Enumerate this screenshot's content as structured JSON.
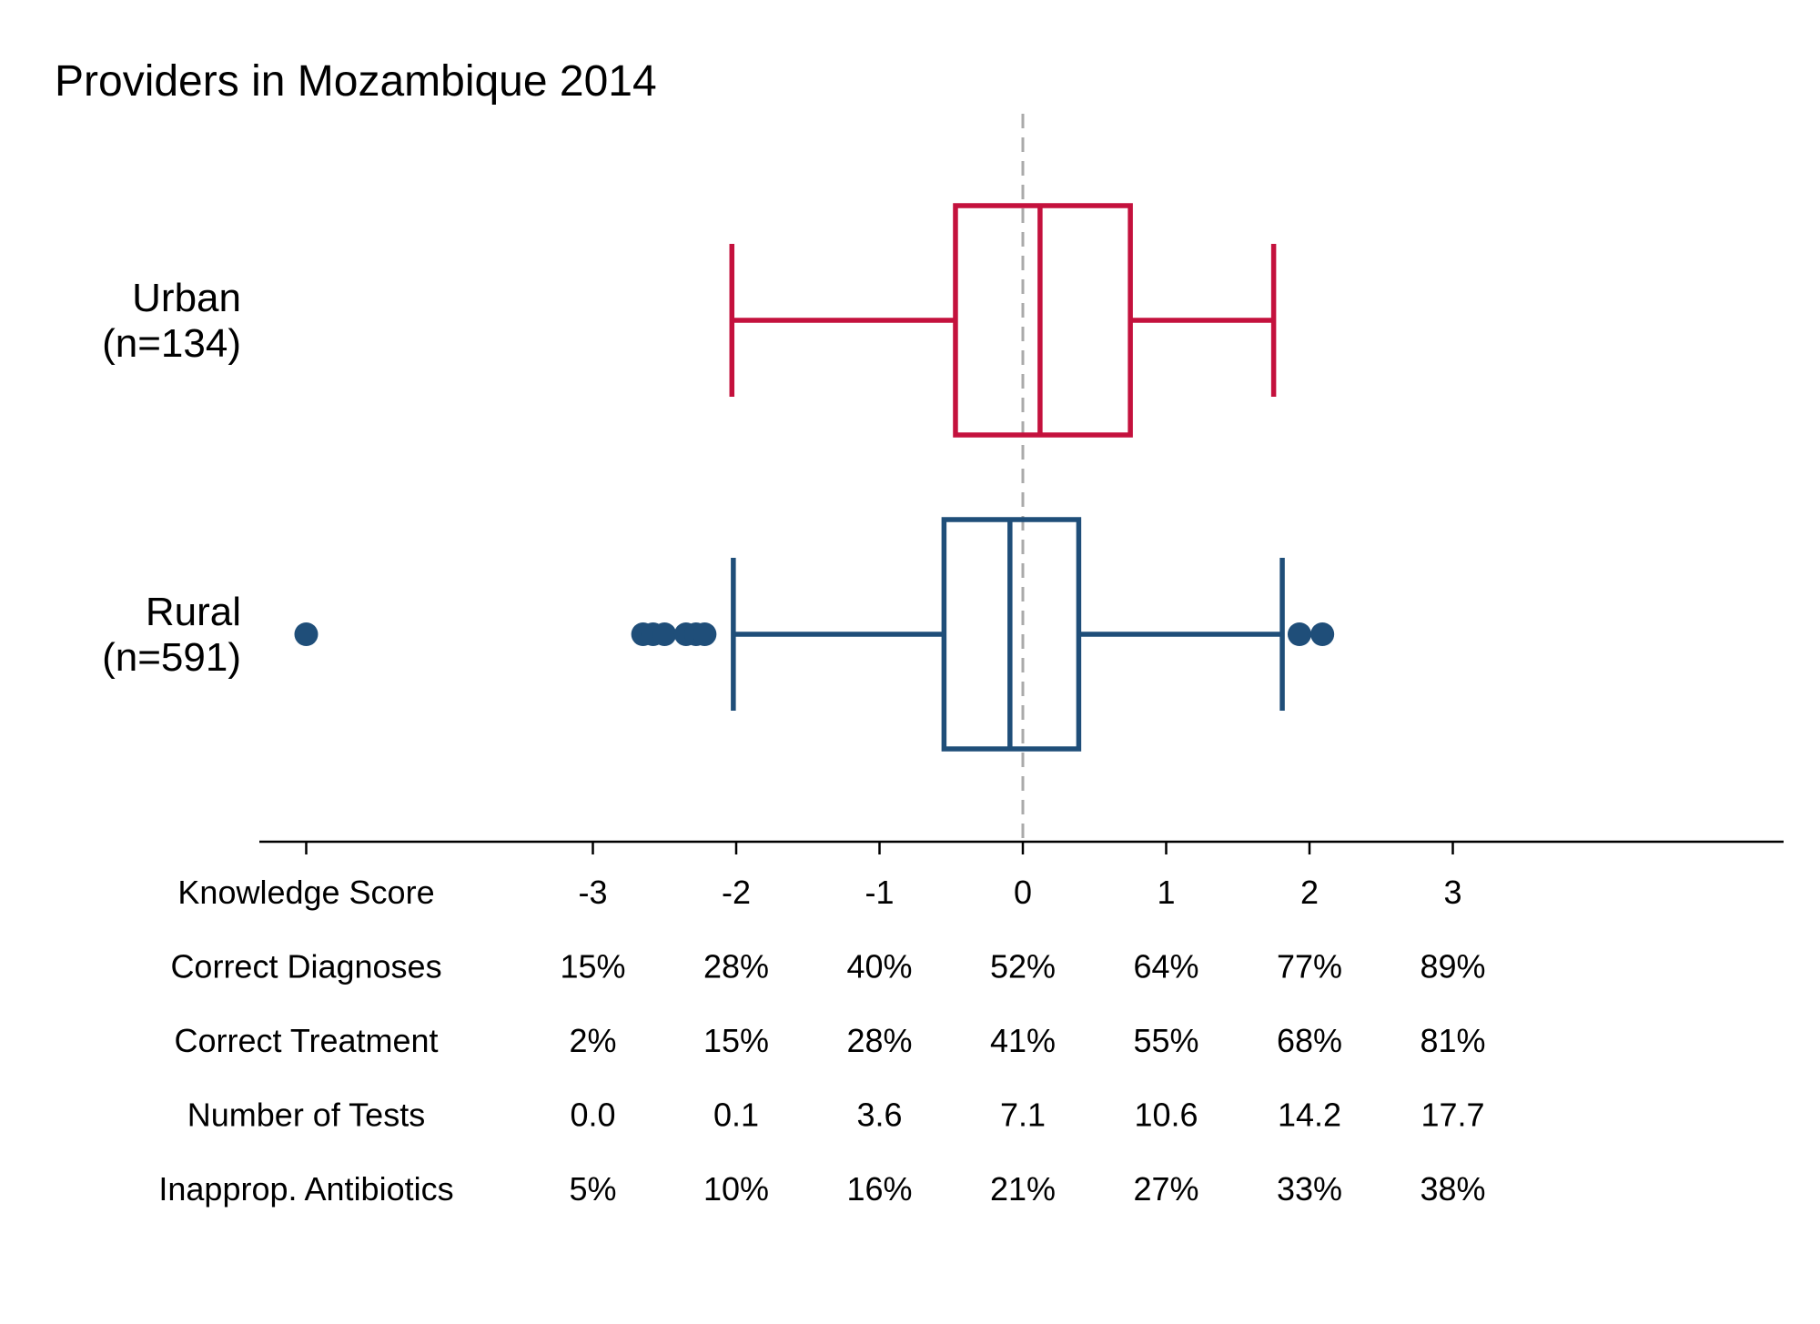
{
  "chart_data": {
    "type": "boxplot",
    "title": "Providers in Mozambique 2014",
    "orientation": "horizontal",
    "xlim": [
      -5,
      5.3
    ],
    "reference_line": {
      "x": 0,
      "style": "dashed",
      "color": "#aaaaaa"
    },
    "groups": [
      {
        "label_line1": "Urban",
        "label_line2": "(n=134)",
        "color": "#c4113d",
        "whisker_low": -2.03,
        "q1": -0.47,
        "median": 0.12,
        "q3": 0.75,
        "whisker_high": 1.75,
        "outliers": []
      },
      {
        "label_line1": "Rural",
        "label_line2": "(n=591)",
        "color": "#1f4e79",
        "whisker_low": -2.02,
        "q1": -0.55,
        "median": -0.09,
        "q3": 0.39,
        "whisker_high": 1.81,
        "outliers": [
          -5.0,
          -2.65,
          -2.58,
          -2.5,
          -2.35,
          -2.28,
          -2.22,
          1.93,
          2.09
        ]
      }
    ],
    "axis_ticks": [
      -5,
      -3,
      -2,
      -1,
      0,
      1,
      2,
      3
    ],
    "table": {
      "columns_x": [
        -3,
        -2,
        -1,
        0,
        1,
        2,
        3
      ],
      "rows": [
        {
          "label": "Knowledge Score",
          "values": [
            "-3",
            "-2",
            "-1",
            "0",
            "1",
            "2",
            "3"
          ]
        },
        {
          "label": "Correct Diagnoses",
          "values": [
            "15%",
            "28%",
            "40%",
            "52%",
            "64%",
            "77%",
            "89%"
          ]
        },
        {
          "label": "Correct Treatment",
          "values": [
            "2%",
            "15%",
            "28%",
            "41%",
            "55%",
            "68%",
            "81%"
          ]
        },
        {
          "label": "Number of Tests",
          "values": [
            "0.0",
            "0.1",
            "3.6",
            "7.1",
            "10.6",
            "14.2",
            "17.7"
          ]
        },
        {
          "label": "Inapprop. Antibiotics",
          "values": [
            "5%",
            "10%",
            "16%",
            "21%",
            "27%",
            "33%",
            "38%"
          ]
        }
      ]
    }
  }
}
